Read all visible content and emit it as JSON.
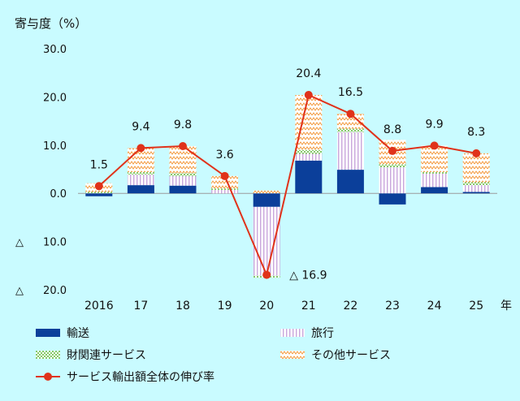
{
  "chart_data": {
    "type": "bar",
    "ylabel": "寄与度（%）",
    "x_unit": "年",
    "categories": [
      "2016",
      "17",
      "18",
      "19",
      "20",
      "21",
      "22",
      "23",
      "24",
      "25"
    ],
    "ylim": [
      -20,
      30
    ],
    "yticks": [
      30,
      20,
      10,
      0,
      -10,
      -20
    ],
    "ytick_labels": [
      "30.0",
      "20.0",
      "10.0",
      "0.0",
      "△ 10.0",
      "△ 20.0"
    ],
    "series": [
      {
        "name": "輸送",
        "kind": "stacked-bar",
        "color": "#0b3f9a",
        "values": [
          -0.6,
          1.7,
          1.6,
          0.0,
          -2.8,
          6.8,
          4.9,
          -2.3,
          1.3,
          0.3
        ]
      },
      {
        "name": "旅行",
        "kind": "stacked-bar",
        "color": "#d8bde6",
        "values": [
          0.0,
          2.2,
          2.0,
          0.7,
          -14.3,
          1.4,
          7.8,
          5.4,
          2.8,
          1.4
        ]
      },
      {
        "name": "財関連サービス",
        "kind": "stacked-bar",
        "color": "#8fd16a",
        "values": [
          0.3,
          0.5,
          0.6,
          0.3,
          -0.4,
          0.8,
          0.7,
          0.6,
          0.3,
          0.6
        ]
      },
      {
        "name": "その他サービス",
        "kind": "stacked-bar",
        "color": "#f7a451",
        "values": [
          1.8,
          5.0,
          5.6,
          2.6,
          0.6,
          11.4,
          3.1,
          5.1,
          5.5,
          6.0
        ]
      },
      {
        "name": "サービス輸出額全体の伸び率",
        "kind": "line",
        "color": "#e0321a",
        "values": [
          1.5,
          9.4,
          9.8,
          3.6,
          -16.9,
          20.4,
          16.5,
          8.8,
          9.9,
          8.3
        ]
      }
    ],
    "point_labels": [
      "1.5",
      "9.4",
      "9.8",
      "3.6",
      "△ 16.9",
      "20.4",
      "16.5",
      "8.8",
      "9.9",
      "8.3"
    ],
    "grid": false,
    "legend_placement": "bottom"
  }
}
